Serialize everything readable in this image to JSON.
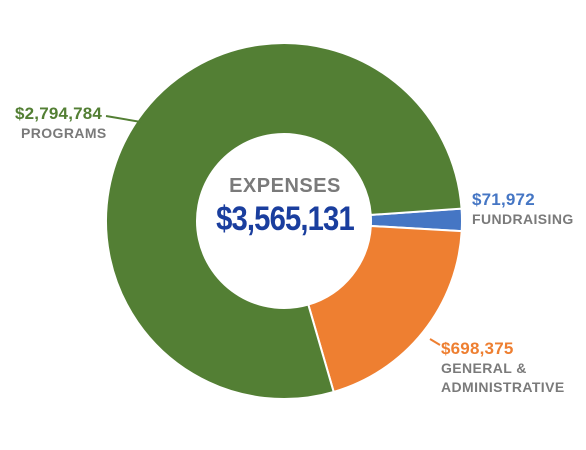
{
  "chart_data": {
    "type": "pie",
    "title": "EXPENSES",
    "total_label": "$3,565,131",
    "slices": [
      {
        "name": "PROGRAMS",
        "value_label": "$2,794,784",
        "value": 2794784,
        "color": "#537f34"
      },
      {
        "name": "FUNDRAISING",
        "value_label": "$71,972",
        "value": 71972,
        "color": "#4576c4"
      },
      {
        "name_lines": [
          "GENERAL &",
          "ADMINISTRATIVE"
        ],
        "value_label": "$698,375",
        "value": 698375,
        "color": "#ee7f31"
      }
    ]
  },
  "colors": {
    "programs": "#537f34",
    "fundraising": "#4576c4",
    "general": "#ee7f31",
    "total_text": "#1a3e9e",
    "muted_text": "#7a7a7a"
  }
}
